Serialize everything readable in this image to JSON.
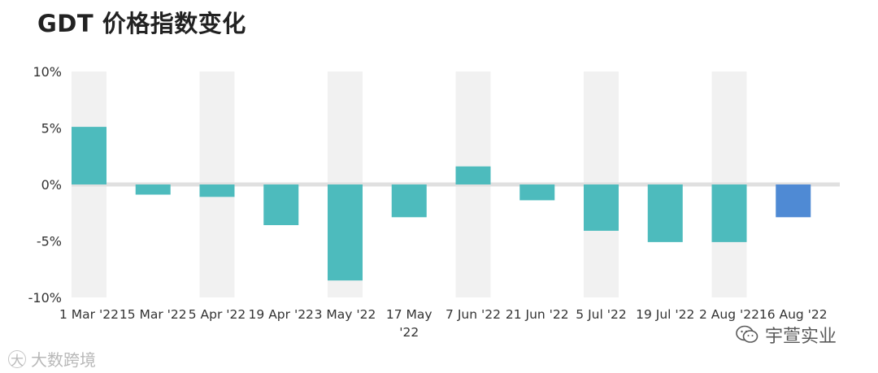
{
  "page": {
    "title": "GDT 价格指数变化"
  },
  "chart_data": {
    "type": "bar",
    "title": "GDT 价格指数变化",
    "xlabel": "",
    "ylabel": "",
    "ylim": [
      -10,
      10
    ],
    "yticks": [
      10,
      5,
      0,
      -5,
      -10
    ],
    "ytick_labels": [
      "10%",
      "5%",
      "0%",
      "-5%",
      "-10%"
    ],
    "categories": [
      "1 Mar '22",
      "15 Mar '22",
      "5 Apr '22",
      "19 Apr '22",
      "3 May '22",
      "17 May '22",
      "7 Jun '22",
      "21 Jun '22",
      "5 Jul '22",
      "19 Jul '22",
      "2 Aug '22",
      "16 Aug '22"
    ],
    "category_lines": [
      [
        "1 Mar '22"
      ],
      [
        "15 Mar '22"
      ],
      [
        "5 Apr '22"
      ],
      [
        "19 Apr '22"
      ],
      [
        "3 May '22"
      ],
      [
        "17 May",
        "'22"
      ],
      [
        "7 Jun '22"
      ],
      [
        "21 Jun '22"
      ],
      [
        "5 Jul '22"
      ],
      [
        "19 Jul '22"
      ],
      [
        "2 Aug '22"
      ],
      [
        "16 Aug '22"
      ]
    ],
    "values": [
      5.1,
      -0.9,
      -1.1,
      -3.6,
      -8.5,
      -2.9,
      1.6,
      -1.4,
      -4.1,
      -5.1,
      -5.1,
      -2.9
    ],
    "highlight_index": 11,
    "colors": {
      "bar": "#4dbbbd",
      "highlight": "#4f8ad4",
      "band": "#f1f1f1",
      "zero_line": "#e0e0e0",
      "tick_text": "#333333"
    },
    "grid": false
  },
  "watermarks": {
    "left_text": "大数跨境",
    "left_logo": "大",
    "right_text": "宇萱实业",
    "right_icon": "wechat-icon"
  }
}
